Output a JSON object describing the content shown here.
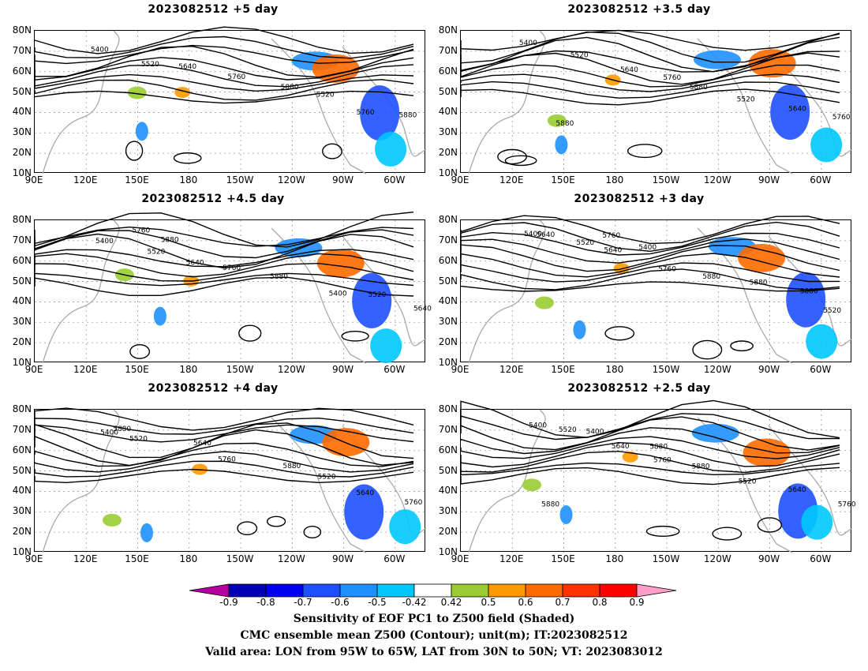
{
  "panels": [
    {
      "id": "p1",
      "title": "2023082512",
      "lead": "+5 day",
      "col": 0,
      "row": 0,
      "contour_labels": [
        "5400",
        "5520",
        "5640",
        "5760",
        "5880",
        "5520",
        "5760",
        "5880"
      ]
    },
    {
      "id": "p2",
      "title": "2023082512",
      "lead": "+3.5 day",
      "col": 1,
      "row": 0,
      "contour_labels": [
        "5400",
        "5520",
        "5640",
        "5760",
        "5880",
        "5520",
        "5640",
        "5760",
        "5880"
      ]
    },
    {
      "id": "p3",
      "title": "2023082512",
      "lead": "+4.5 day",
      "col": 0,
      "row": 1,
      "contour_labels": [
        "5400",
        "5520",
        "5640",
        "5760",
        "5880",
        "5400",
        "5520",
        "5640",
        "5760",
        "5880"
      ]
    },
    {
      "id": "p4",
      "title": "2023082512",
      "lead": "+3 day",
      "col": 1,
      "row": 1,
      "contour_labels": [
        "5400",
        "5520",
        "5640",
        "5760",
        "5880",
        "5880",
        "5880",
        "5520",
        "5640",
        "5760",
        "5400"
      ]
    },
    {
      "id": "p5",
      "title": "2023082512",
      "lead": "+4 day",
      "col": 0,
      "row": 2,
      "contour_labels": [
        "5400",
        "5520",
        "5640",
        "5760",
        "5880",
        "5520",
        "5640",
        "5760",
        "5880"
      ]
    },
    {
      "id": "p6",
      "title": "2023082512",
      "lead": "+2.5 day",
      "col": 1,
      "row": 2,
      "contour_labels": [
        "5400",
        "5520",
        "5640",
        "5760",
        "5880",
        "5520",
        "5640",
        "5760",
        "5880",
        "5400",
        "5880"
      ]
    }
  ],
  "lat_labels": [
    "80N",
    "70N",
    "60N",
    "50N",
    "40N",
    "30N",
    "20N",
    "10N"
  ],
  "lon_labels": [
    "90E",
    "120E",
    "150E",
    "180",
    "150W",
    "120W",
    "90W",
    "60W"
  ],
  "colorbar": {
    "labels": [
      "-0.9",
      "-0.8",
      "-0.7",
      "-0.6",
      "-0.5",
      "-0.42",
      "0.42",
      "0.5",
      "0.6",
      "0.7",
      "0.8",
      "0.9"
    ],
    "colors": [
      "#b3009e",
      "#0000b4",
      "#0000f0",
      "#1e50ff",
      "#1e90ff",
      "#00c8ff",
      "#ffffff",
      "#9acd32",
      "#ff9900",
      "#ff6a00",
      "#ff3300",
      "#ff0000",
      "#ff9ec8"
    ]
  },
  "captions": [
    "Sensitivity of EOF PC1 to Z500 field (Shaded)",
    "CMC ensemble mean Z500 (Contour); unit(m); IT:2023082512",
    "Valid area: LON from 95W to 65W, LAT from 30N to 50N; VT: 2023083012"
  ]
}
